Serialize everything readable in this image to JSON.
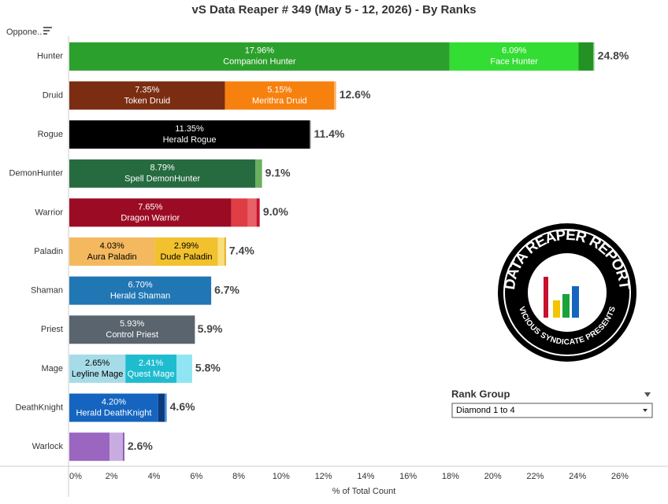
{
  "chart_data": {
    "type": "stacked-bar",
    "orientation": "horizontal",
    "title": "vS Data Reaper # 349 (May 5 - 12, 2026) - By Ranks",
    "y_label": "Oppone..",
    "x_label": "% of Total Count",
    "categories": [
      "Hunter",
      "Druid",
      "Rogue",
      "DemonHunter",
      "Warrior",
      "Paladin",
      "Shaman",
      "Priest",
      "Mage",
      "DeathKnight",
      "Warlock"
    ],
    "bars": [
      {
        "segments": [
          {
            "name": "Companion Hunter",
            "value": 17.96,
            "value_label": "17.96%",
            "color": "#2ca02c"
          },
          {
            "name": "Face Hunter",
            "value": 6.09,
            "value_label": "6.09%",
            "color": "#33dd33"
          },
          {
            "value": 0.7,
            "color": "#249124"
          },
          {
            "value": 0.05,
            "color": "#8fd88f"
          }
        ],
        "total": 24.8,
        "total_label": "24.8%"
      },
      {
        "segments": [
          {
            "name": "Token Druid",
            "value": 7.35,
            "value_label": "7.35%",
            "color": "#7b2d12"
          },
          {
            "name": "Merithra Druid",
            "value": 5.15,
            "value_label": "5.15%",
            "color": "#f7810f"
          },
          {
            "value": 0.1,
            "color": "#f9b26a"
          }
        ],
        "total": 12.6,
        "total_label": "12.6%"
      },
      {
        "segments": [
          {
            "name": "Herald Rogue",
            "value": 11.35,
            "value_label": "11.35%",
            "color": "#000000"
          },
          {
            "value": 0.05,
            "color": "#777777"
          }
        ],
        "total": 11.4,
        "total_label": "11.4%"
      },
      {
        "segments": [
          {
            "name": "Spell DemonHunter",
            "value": 8.79,
            "value_label": "8.79%",
            "color": "#256b3f"
          },
          {
            "value": 0.31,
            "color": "#6aaf5e"
          }
        ],
        "total": 9.1,
        "total_label": "9.1%"
      },
      {
        "segments": [
          {
            "name": "Dragon Warrior",
            "value": 7.65,
            "value_label": "7.65%",
            "color": "#9b0c24"
          },
          {
            "value": 0.78,
            "color": "#e03c44"
          },
          {
            "value": 0.41,
            "color": "#e86068"
          },
          {
            "value": 0.15,
            "color": "#c8102e"
          }
        ],
        "total": 9.0,
        "total_label": "9.0%"
      },
      {
        "segments": [
          {
            "name": "Aura Paladin",
            "value": 4.03,
            "value_label": "4.03%",
            "color": "#f4b95e"
          },
          {
            "name": "Dude Paladin",
            "value": 2.99,
            "value_label": "2.99%",
            "color": "#f2c12e"
          },
          {
            "value": 0.3,
            "color": "#f7e07a"
          },
          {
            "value": 0.08,
            "color": "#e8b02a"
          }
        ],
        "total": 7.4,
        "total_label": "7.4%"
      },
      {
        "segments": [
          {
            "name": "Herald Shaman",
            "value": 6.7,
            "value_label": "6.70%",
            "color": "#2176b4"
          }
        ],
        "total": 6.7,
        "total_label": "6.7%"
      },
      {
        "segments": [
          {
            "name": "Control Priest",
            "value": 5.93,
            "value_label": "5.93%",
            "color": "#59646e"
          }
        ],
        "total": 5.9,
        "total_label": "5.9%"
      },
      {
        "segments": [
          {
            "name": "Leyline Mage",
            "value": 2.65,
            "value_label": "2.65%",
            "color": "#a6dce8"
          },
          {
            "name": "Quest Mage",
            "value": 2.41,
            "value_label": "2.41%",
            "color": "#1fbcd0"
          },
          {
            "value": 0.74,
            "color": "#8fe6f2"
          }
        ],
        "total": 5.8,
        "total_label": "5.8%"
      },
      {
        "segments": [
          {
            "name": "Herald DeathKnight",
            "value": 4.2,
            "value_label": "4.20%",
            "color": "#1565c0"
          },
          {
            "value": 0.3,
            "color": "#0d3a7a"
          },
          {
            "value": 0.1,
            "color": "#4a8ad8"
          }
        ],
        "total": 4.6,
        "total_label": "4.6%"
      },
      {
        "segments": [
          {
            "value": 1.9,
            "color": "#9a66c0"
          },
          {
            "value": 0.63,
            "color": "#c8acdf"
          },
          {
            "value": 0.07,
            "color": "#8a56b0"
          }
        ],
        "total": 2.6,
        "total_label": "2.6%"
      }
    ],
    "xlim": [
      0,
      27.9
    ],
    "xticks": [
      {
        "value": 0,
        "label": "0%"
      },
      {
        "value": 2,
        "label": "2%"
      },
      {
        "value": 4,
        "label": "4%"
      },
      {
        "value": 6,
        "label": "6%"
      },
      {
        "value": 8,
        "label": "8%"
      },
      {
        "value": 10,
        "label": "10%"
      },
      {
        "value": 12,
        "label": "12%"
      },
      {
        "value": 14,
        "label": "14%"
      },
      {
        "value": 16,
        "label": "16%"
      },
      {
        "value": 18,
        "label": "18%"
      },
      {
        "value": 20,
        "label": "20%"
      },
      {
        "value": 22,
        "label": "22%"
      },
      {
        "value": 24,
        "label": "24%"
      },
      {
        "value": 26,
        "label": "26%"
      }
    ],
    "grid": false
  },
  "filter": {
    "title": "Rank Group",
    "value": "Diamond 1 to 4"
  },
  "logo": {
    "title": "DATA REAPER REPORT",
    "subtitle": "VICIOUS SYNDICATE PRESENTS"
  }
}
